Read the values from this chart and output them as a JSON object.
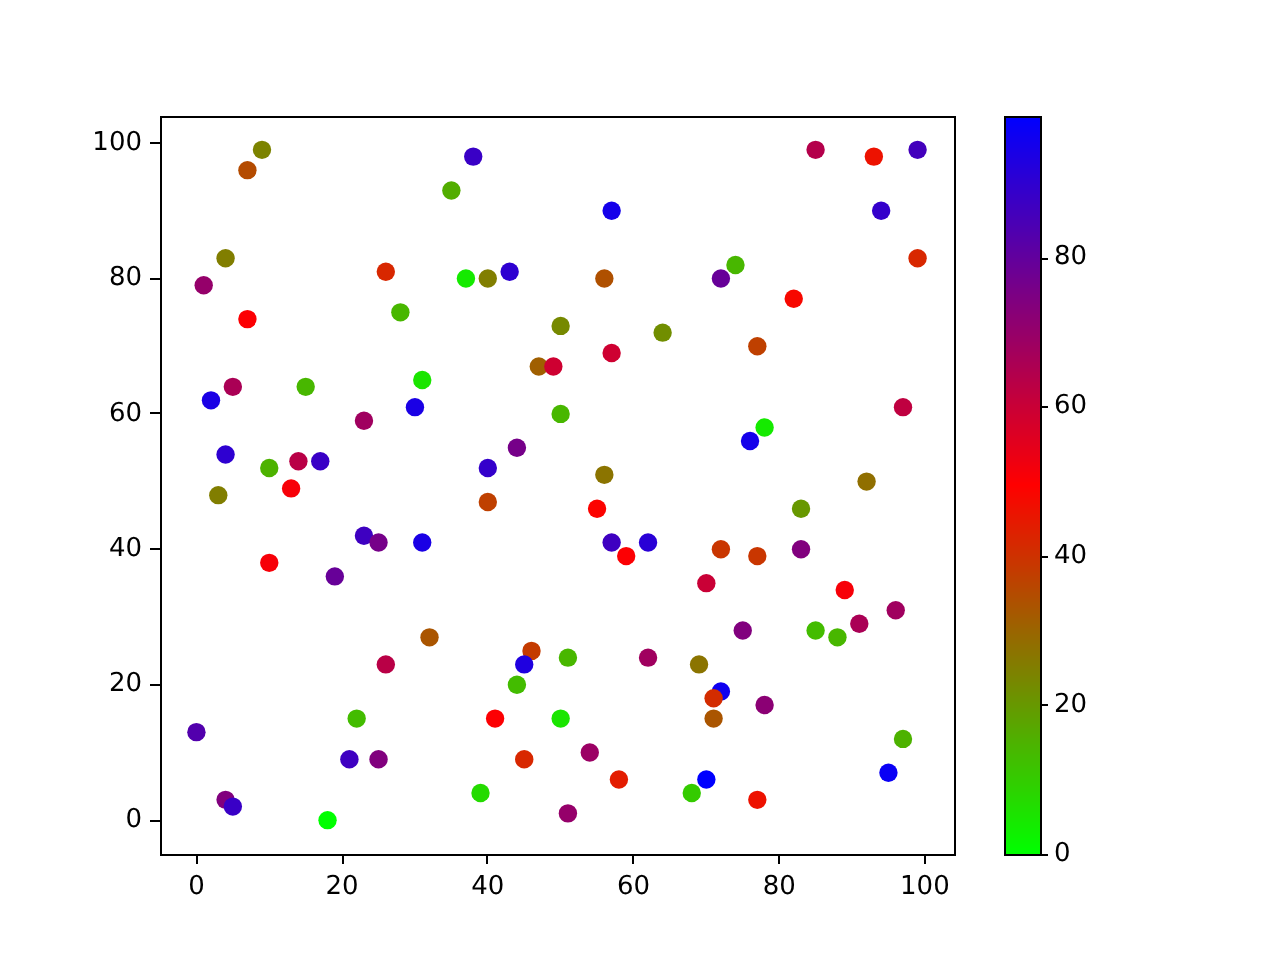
{
  "chart_data": {
    "type": "scatter",
    "x": [
      9,
      7,
      38,
      35,
      4,
      1,
      26,
      37,
      40,
      43,
      7,
      28,
      50,
      2,
      5,
      15,
      31,
      30,
      23,
      47,
      49,
      50,
      4,
      10,
      14,
      17,
      40,
      44,
      3,
      13,
      40,
      23,
      25,
      31,
      10,
      19,
      32,
      26,
      46,
      45,
      51,
      44,
      22,
      41,
      50,
      0,
      21,
      25,
      45,
      4,
      5,
      18,
      39,
      51,
      85,
      93,
      99,
      57,
      94,
      74,
      72,
      99,
      56,
      82,
      64,
      57,
      77,
      97,
      78,
      76,
      56,
      92,
      55,
      83,
      57,
      62,
      59,
      72,
      77,
      83,
      70,
      89,
      96,
      91,
      75,
      85,
      88,
      62,
      69,
      72,
      71,
      71,
      78,
      97,
      54,
      58,
      70,
      68,
      77,
      95
    ],
    "values": [
      99,
      96,
      98,
      93,
      83,
      79,
      81,
      80,
      80,
      81,
      74,
      75,
      73,
      62,
      64,
      64,
      65,
      61,
      59,
      67,
      67,
      60,
      54,
      52,
      53,
      53,
      52,
      55,
      48,
      49,
      47,
      42,
      41,
      41,
      38,
      36,
      27,
      23,
      25,
      23,
      24,
      20,
      15,
      15,
      15,
      13,
      9,
      9,
      9,
      3,
      2,
      0,
      4,
      1,
      99,
      98,
      99,
      90,
      90,
      82,
      80,
      83,
      80,
      77,
      72,
      69,
      70,
      61,
      58,
      56,
      51,
      50,
      46,
      46,
      41,
      41,
      39,
      40,
      39,
      40,
      35,
      34,
      31,
      29,
      28,
      28,
      27,
      24,
      23,
      19,
      18,
      15,
      17,
      12,
      10,
      6,
      6,
      4,
      3,
      7
    ],
    "cvalues": [
      24,
      35,
      88,
      16,
      25,
      70,
      42,
      4,
      25,
      90,
      50,
      14,
      23,
      94,
      66,
      14,
      5,
      94,
      68,
      31,
      59,
      14,
      90,
      15,
      63,
      88,
      89,
      76,
      25,
      51,
      37,
      87,
      76,
      94,
      51,
      79,
      33,
      63,
      38,
      93,
      14,
      13,
      13,
      50,
      5,
      83,
      87,
      74,
      42,
      74,
      88,
      0,
      7,
      70,
      64,
      46,
      86,
      95,
      89,
      14,
      79,
      42,
      34,
      48,
      22,
      59,
      37,
      62,
      4,
      95,
      27,
      28,
      49,
      20,
      87,
      91,
      50,
      39,
      39,
      74,
      60,
      51,
      68,
      66,
      74,
      13,
      14,
      68,
      27,
      96,
      41,
      33,
      72,
      15,
      69,
      44,
      99,
      10,
      46,
      97
    ],
    "xlim": [
      -5,
      104
    ],
    "ylim": [
      -5,
      104
    ],
    "xticks": [
      0,
      20,
      40,
      60,
      80,
      100
    ],
    "yticks": [
      0,
      20,
      40,
      60,
      80,
      100
    ],
    "clim": [
      0,
      99
    ],
    "cticks": [
      0,
      20,
      40,
      60,
      80
    ],
    "grid": false,
    "marker": "circle"
  }
}
